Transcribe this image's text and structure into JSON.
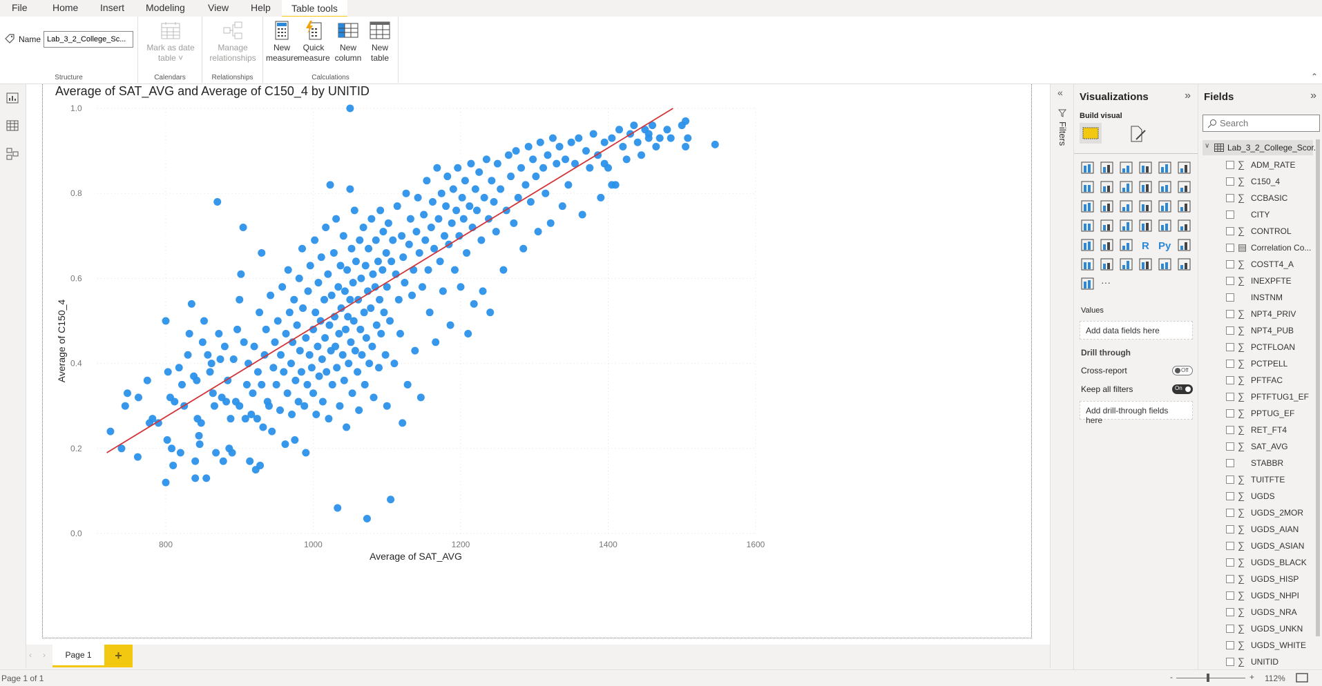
{
  "ribbon_tabs": [
    "File",
    "Home",
    "Insert",
    "Modeling",
    "View",
    "Help",
    "Table tools"
  ],
  "active_tab": "Table tools",
  "ribbon": {
    "name_label": "Name",
    "name_value": "Lab_3_2_College_Sc...",
    "structure_label": "Structure",
    "mark_date_l1": "Mark as date",
    "mark_date_l2": "table ˅",
    "calendars_label": "Calendars",
    "manage_l1": "Manage",
    "manage_l2": "relationships",
    "relationships_label": "Relationships",
    "new_measure_l1": "New",
    "new_measure_l2": "measure",
    "quick_measure_l1": "Quick",
    "quick_measure_l2": "measure",
    "new_column_l1": "New",
    "new_column_l2": "column",
    "new_table_l1": "New",
    "new_table_l2": "table",
    "calculations_label": "Calculations"
  },
  "filters_label": "Filters",
  "visualizations": {
    "title": "Visualizations",
    "build_visual": "Build visual",
    "icons": [
      "stacked-bar",
      "stacked-column",
      "clustered-bar",
      "clustered-column",
      "100-bar",
      "100-column",
      "line",
      "area",
      "stacked-area",
      "line-column",
      "line-clustered-column",
      "ribbon",
      "waterfall",
      "funnel",
      "scatter",
      "pie",
      "donut",
      "treemap",
      "map",
      "filled-map",
      "gauge",
      "card",
      "multi-row-card",
      "kpi",
      "slicer",
      "table",
      "matrix",
      "r-visual",
      "python-visual",
      "key-influencers",
      "decomposition-tree",
      "qa",
      "smart-narrative",
      "paginated-report",
      "power-apps",
      "power-automate",
      "get-more-visuals",
      "more"
    ],
    "values_label": "Values",
    "add_data": "Add data fields here",
    "drill_through": "Drill through",
    "cross_report": "Cross-report",
    "cross_report_state": "Off",
    "keep_filters": "Keep all filters",
    "keep_filters_state": "On",
    "add_drill": "Add drill-through fields here"
  },
  "fields": {
    "title": "Fields",
    "search_placeholder": "Search",
    "table_name": "Lab_3_2_College_Scor...",
    "items": [
      {
        "name": "ADM_RATE",
        "sigma": true
      },
      {
        "name": "C150_4",
        "sigma": true
      },
      {
        "name": "CCBASIC",
        "sigma": true
      },
      {
        "name": "CITY",
        "sigma": false
      },
      {
        "name": "CONTROL",
        "sigma": true
      },
      {
        "name": "Correlation Co...",
        "sigma": false,
        "calc": true
      },
      {
        "name": "COSTT4_A",
        "sigma": true
      },
      {
        "name": "INEXPFTE",
        "sigma": true
      },
      {
        "name": "INSTNM",
        "sigma": false
      },
      {
        "name": "NPT4_PRIV",
        "sigma": true
      },
      {
        "name": "NPT4_PUB",
        "sigma": true
      },
      {
        "name": "PCTFLOAN",
        "sigma": true
      },
      {
        "name": "PCTPELL",
        "sigma": true
      },
      {
        "name": "PFTFAC",
        "sigma": true
      },
      {
        "name": "PFTFTUG1_EF",
        "sigma": true
      },
      {
        "name": "PPTUG_EF",
        "sigma": true
      },
      {
        "name": "RET_FT4",
        "sigma": true
      },
      {
        "name": "SAT_AVG",
        "sigma": true
      },
      {
        "name": "STABBR",
        "sigma": false
      },
      {
        "name": "TUITFTE",
        "sigma": true
      },
      {
        "name": "UGDS",
        "sigma": true
      },
      {
        "name": "UGDS_2MOR",
        "sigma": true
      },
      {
        "name": "UGDS_AIAN",
        "sigma": true
      },
      {
        "name": "UGDS_ASIAN",
        "sigma": true
      },
      {
        "name": "UGDS_BLACK",
        "sigma": true
      },
      {
        "name": "UGDS_HISP",
        "sigma": true
      },
      {
        "name": "UGDS_NHPI",
        "sigma": true
      },
      {
        "name": "UGDS_NRA",
        "sigma": true
      },
      {
        "name": "UGDS_UNKN",
        "sigma": true
      },
      {
        "name": "UGDS_WHITE",
        "sigma": true
      },
      {
        "name": "UNITID",
        "sigma": true
      }
    ]
  },
  "pages": {
    "tab": "Page 1",
    "add": "+"
  },
  "status": {
    "page": "Page 1 of 1",
    "zoom": "112%",
    "zoom_minus": "-",
    "zoom_plus": "+",
    "zoom_level_percent": 112
  },
  "colors": {
    "accent": "#f2c811",
    "points": "#2b91ea",
    "trend": "#d13438"
  },
  "chart_data": {
    "type": "scatter",
    "title": "Average of SAT_AVG and Average of C150_4 by UNITID",
    "xlabel": "Average of SAT_AVG",
    "ylabel": "Average of C150_4",
    "xticks": [
      "800",
      "1000",
      "1200",
      "1400",
      "1600"
    ],
    "yticks": [
      "0.0",
      "0.2",
      "0.4",
      "0.6",
      "0.8",
      "1.0"
    ],
    "xlim": [
      707,
      1600
    ],
    "ylim": [
      0,
      1
    ],
    "grid": true,
    "trend_line": [
      [
        720,
        0.19
      ],
      [
        1488,
        1.0
      ]
    ],
    "points": [
      [
        725,
        0.24
      ],
      [
        740,
        0.2
      ],
      [
        745,
        0.3
      ],
      [
        748,
        0.33
      ],
      [
        762,
        0.18
      ],
      [
        763,
        0.32
      ],
      [
        775,
        0.36
      ],
      [
        778,
        0.26
      ],
      [
        782,
        0.27
      ],
      [
        790,
        0.26
      ],
      [
        800,
        0.12
      ],
      [
        800,
        0.5
      ],
      [
        802,
        0.22
      ],
      [
        803,
        0.38
      ],
      [
        806,
        0.32
      ],
      [
        808,
        0.2
      ],
      [
        810,
        0.16
      ],
      [
        812,
        0.31
      ],
      [
        818,
        0.39
      ],
      [
        820,
        0.19
      ],
      [
        822,
        0.35
      ],
      [
        825,
        0.3
      ],
      [
        830,
        0.42
      ],
      [
        832,
        0.47
      ],
      [
        835,
        0.54
      ],
      [
        838,
        0.37
      ],
      [
        840,
        0.17
      ],
      [
        840,
        0.13
      ],
      [
        842,
        0.36
      ],
      [
        843,
        0.27
      ],
      [
        845,
        0.23
      ],
      [
        846,
        0.21
      ],
      [
        848,
        0.26
      ],
      [
        850,
        0.45
      ],
      [
        852,
        0.5
      ],
      [
        855,
        0.13
      ],
      [
        857,
        0.42
      ],
      [
        860,
        0.38
      ],
      [
        862,
        0.4
      ],
      [
        864,
        0.33
      ],
      [
        866,
        0.3
      ],
      [
        868,
        0.19
      ],
      [
        870,
        0.78
      ],
      [
        872,
        0.47
      ],
      [
        874,
        0.41
      ],
      [
        876,
        0.32
      ],
      [
        878,
        0.17
      ],
      [
        880,
        0.44
      ],
      [
        882,
        0.31
      ],
      [
        884,
        0.36
      ],
      [
        886,
        0.2
      ],
      [
        888,
        0.27
      ],
      [
        890,
        0.19
      ],
      [
        892,
        0.41
      ],
      [
        895,
        0.31
      ],
      [
        897,
        0.48
      ],
      [
        900,
        0.3
      ],
      [
        900,
        0.55
      ],
      [
        902,
        0.61
      ],
      [
        905,
        0.72
      ],
      [
        906,
        0.45
      ],
      [
        908,
        0.27
      ],
      [
        910,
        0.35
      ],
      [
        912,
        0.4
      ],
      [
        914,
        0.17
      ],
      [
        916,
        0.28
      ],
      [
        918,
        0.33
      ],
      [
        920,
        0.44
      ],
      [
        922,
        0.15
      ],
      [
        924,
        0.27
      ],
      [
        925,
        0.38
      ],
      [
        927,
        0.52
      ],
      [
        928,
        0.16
      ],
      [
        930,
        0.66
      ],
      [
        930,
        0.35
      ],
      [
        932,
        0.25
      ],
      [
        934,
        0.42
      ],
      [
        936,
        0.48
      ],
      [
        938,
        0.31
      ],
      [
        940,
        0.3
      ],
      [
        942,
        0.56
      ],
      [
        944,
        0.24
      ],
      [
        946,
        0.39
      ],
      [
        948,
        0.45
      ],
      [
        950,
        0.35
      ],
      [
        952,
        0.5
      ],
      [
        955,
        0.29
      ],
      [
        956,
        0.42
      ],
      [
        958,
        0.58
      ],
      [
        960,
        0.38
      ],
      [
        962,
        0.21
      ],
      [
        963,
        0.47
      ],
      [
        965,
        0.33
      ],
      [
        966,
        0.62
      ],
      [
        968,
        0.52
      ],
      [
        970,
        0.4
      ],
      [
        971,
        0.28
      ],
      [
        972,
        0.45
      ],
      [
        974,
        0.55
      ],
      [
        975,
        0.22
      ],
      [
        976,
        0.36
      ],
      [
        978,
        0.49
      ],
      [
        980,
        0.31
      ],
      [
        981,
        0.6
      ],
      [
        982,
        0.43
      ],
      [
        984,
        0.38
      ],
      [
        985,
        0.67
      ],
      [
        986,
        0.53
      ],
      [
        988,
        0.3
      ],
      [
        990,
        0.46
      ],
      [
        990,
        0.19
      ],
      [
        992,
        0.35
      ],
      [
        993,
        0.57
      ],
      [
        995,
        0.42
      ],
      [
        996,
        0.63
      ],
      [
        998,
        0.39
      ],
      [
        1000,
        0.48
      ],
      [
        1000,
        0.33
      ],
      [
        1002,
        0.69
      ],
      [
        1003,
        0.52
      ],
      [
        1004,
        0.28
      ],
      [
        1006,
        0.44
      ],
      [
        1007,
        0.59
      ],
      [
        1008,
        0.37
      ],
      [
        1010,
        0.5
      ],
      [
        1011,
        0.65
      ],
      [
        1012,
        0.41
      ],
      [
        1013,
        0.31
      ],
      [
        1015,
        0.55
      ],
      [
        1016,
        0.46
      ],
      [
        1017,
        0.72
      ],
      [
        1018,
        0.38
      ],
      [
        1020,
        0.61
      ],
      [
        1021,
        0.27
      ],
      [
        1022,
        0.49
      ],
      [
        1023,
        0.82
      ],
      [
        1024,
        0.43
      ],
      [
        1025,
        0.56
      ],
      [
        1026,
        0.35
      ],
      [
        1028,
        0.66
      ],
      [
        1029,
        0.51
      ],
      [
        1030,
        0.44
      ],
      [
        1031,
        0.74
      ],
      [
        1032,
        0.39
      ],
      [
        1033,
        0.06
      ],
      [
        1034,
        0.58
      ],
      [
        1035,
        0.47
      ],
      [
        1036,
        0.3
      ],
      [
        1037,
        0.63
      ],
      [
        1038,
        0.53
      ],
      [
        1040,
        0.42
      ],
      [
        1041,
        0.7
      ],
      [
        1042,
        0.36
      ],
      [
        1043,
        0.57
      ],
      [
        1044,
        0.48
      ],
      [
        1045,
        0.25
      ],
      [
        1046,
        0.62
      ],
      [
        1047,
        0.51
      ],
      [
        1048,
        0.4
      ],
      [
        1050,
        1.0
      ],
      [
        1050,
        0.81
      ],
      [
        1050,
        0.55
      ],
      [
        1051,
        0.45
      ],
      [
        1052,
        0.67
      ],
      [
        1053,
        0.33
      ],
      [
        1054,
        0.59
      ],
      [
        1055,
        0.5
      ],
      [
        1056,
        0.76
      ],
      [
        1057,
        0.43
      ],
      [
        1058,
        0.64
      ],
      [
        1060,
        0.38
      ],
      [
        1061,
        0.55
      ],
      [
        1062,
        0.29
      ],
      [
        1063,
        0.69
      ],
      [
        1064,
        0.48
      ],
      [
        1065,
        0.6
      ],
      [
        1066,
        0.42
      ],
      [
        1068,
        0.72
      ],
      [
        1069,
        0.52
      ],
      [
        1070,
        0.35
      ],
      [
        1071,
        0.63
      ],
      [
        1072,
        0.46
      ],
      [
        1073,
        0.035
      ],
      [
        1074,
        0.57
      ],
      [
        1075,
        0.67
      ],
      [
        1076,
        0.4
      ],
      [
        1078,
        0.53
      ],
      [
        1079,
        0.74
      ],
      [
        1080,
        0.44
      ],
      [
        1081,
        0.61
      ],
      [
        1082,
        0.32
      ],
      [
        1084,
        0.58
      ],
      [
        1085,
        0.69
      ],
      [
        1086,
        0.49
      ],
      [
        1088,
        0.64
      ],
      [
        1089,
        0.39
      ],
      [
        1090,
        0.55
      ],
      [
        1091,
        0.76
      ],
      [
        1092,
        0.47
      ],
      [
        1094,
        0.62
      ],
      [
        1095,
        0.71
      ],
      [
        1096,
        0.52
      ],
      [
        1098,
        0.42
      ],
      [
        1099,
        0.66
      ],
      [
        1100,
        0.58
      ],
      [
        1100,
        0.3
      ],
      [
        1105,
        0.08
      ],
      [
        1102,
        0.73
      ],
      [
        1104,
        0.5
      ],
      [
        1106,
        0.64
      ],
      [
        1108,
        0.69
      ],
      [
        1110,
        0.4
      ],
      [
        1112,
        0.61
      ],
      [
        1114,
        0.77
      ],
      [
        1116,
        0.55
      ],
      [
        1118,
        0.47
      ],
      [
        1120,
        0.7
      ],
      [
        1121,
        0.26
      ],
      [
        1122,
        0.65
      ],
      [
        1124,
        0.59
      ],
      [
        1126,
        0.8
      ],
      [
        1128,
        0.35
      ],
      [
        1130,
        0.68
      ],
      [
        1132,
        0.74
      ],
      [
        1134,
        0.56
      ],
      [
        1136,
        0.62
      ],
      [
        1138,
        0.43
      ],
      [
        1140,
        0.71
      ],
      [
        1142,
        0.79
      ],
      [
        1144,
        0.66
      ],
      [
        1146,
        0.32
      ],
      [
        1148,
        0.58
      ],
      [
        1150,
        0.75
      ],
      [
        1152,
        0.69
      ],
      [
        1154,
        0.83
      ],
      [
        1156,
        0.62
      ],
      [
        1158,
        0.52
      ],
      [
        1160,
        0.72
      ],
      [
        1162,
        0.78
      ],
      [
        1164,
        0.67
      ],
      [
        1166,
        0.45
      ],
      [
        1168,
        0.86
      ],
      [
        1170,
        0.74
      ],
      [
        1172,
        0.64
      ],
      [
        1174,
        0.8
      ],
      [
        1176,
        0.57
      ],
      [
        1178,
        0.7
      ],
      [
        1180,
        0.77
      ],
      [
        1182,
        0.84
      ],
      [
        1184,
        0.68
      ],
      [
        1186,
        0.49
      ],
      [
        1188,
        0.73
      ],
      [
        1190,
        0.81
      ],
      [
        1192,
        0.62
      ],
      [
        1194,
        0.76
      ],
      [
        1196,
        0.86
      ],
      [
        1198,
        0.7
      ],
      [
        1200,
        0.58
      ],
      [
        1202,
        0.79
      ],
      [
        1204,
        0.74
      ],
      [
        1206,
        0.83
      ],
      [
        1208,
        0.66
      ],
      [
        1210,
        0.47
      ],
      [
        1212,
        0.77
      ],
      [
        1214,
        0.87
      ],
      [
        1216,
        0.72
      ],
      [
        1218,
        0.54
      ],
      [
        1220,
        0.81
      ],
      [
        1222,
        0.76
      ],
      [
        1225,
        0.85
      ],
      [
        1228,
        0.69
      ],
      [
        1230,
        0.57
      ],
      [
        1232,
        0.79
      ],
      [
        1235,
        0.88
      ],
      [
        1238,
        0.74
      ],
      [
        1240,
        0.52
      ],
      [
        1242,
        0.83
      ],
      [
        1245,
        0.78
      ],
      [
        1248,
        0.71
      ],
      [
        1250,
        0.87
      ],
      [
        1254,
        0.81
      ],
      [
        1258,
        0.62
      ],
      [
        1262,
        0.76
      ],
      [
        1265,
        0.89
      ],
      [
        1268,
        0.84
      ],
      [
        1272,
        0.73
      ],
      [
        1275,
        0.9
      ],
      [
        1278,
        0.79
      ],
      [
        1282,
        0.86
      ],
      [
        1285,
        0.67
      ],
      [
        1288,
        0.82
      ],
      [
        1292,
        0.91
      ],
      [
        1295,
        0.78
      ],
      [
        1298,
        0.88
      ],
      [
        1302,
        0.84
      ],
      [
        1305,
        0.71
      ],
      [
        1308,
        0.92
      ],
      [
        1312,
        0.86
      ],
      [
        1315,
        0.8
      ],
      [
        1318,
        0.89
      ],
      [
        1322,
        0.73
      ],
      [
        1325,
        0.93
      ],
      [
        1330,
        0.87
      ],
      [
        1334,
        0.91
      ],
      [
        1338,
        0.77
      ],
      [
        1342,
        0.88
      ],
      [
        1346,
        0.82
      ],
      [
        1350,
        0.92
      ],
      [
        1355,
        0.87
      ],
      [
        1360,
        0.93
      ],
      [
        1365,
        0.75
      ],
      [
        1370,
        0.9
      ],
      [
        1375,
        0.86
      ],
      [
        1380,
        0.94
      ],
      [
        1386,
        0.89
      ],
      [
        1390,
        0.79
      ],
      [
        1395,
        0.92
      ],
      [
        1400,
        0.86
      ],
      [
        1405,
        0.93
      ],
      [
        1410,
        0.82
      ],
      [
        1415,
        0.95
      ],
      [
        1420,
        0.91
      ],
      [
        1425,
        0.88
      ],
      [
        1430,
        0.94
      ],
      [
        1435,
        0.96
      ],
      [
        1440,
        0.92
      ],
      [
        1445,
        0.89
      ],
      [
        1450,
        0.95
      ],
      [
        1455,
        0.93
      ],
      [
        1460,
        0.96
      ],
      [
        1465,
        0.91
      ],
      [
        1470,
        0.93
      ],
      [
        1480,
        0.95
      ],
      [
        1485,
        0.93
      ],
      [
        1500,
        0.96
      ],
      [
        1505,
        0.97
      ],
      [
        1505,
        0.91
      ],
      [
        1508,
        0.93
      ],
      [
        1545,
        0.915
      ],
      [
        1395,
        0.87
      ],
      [
        1405,
        0.82
      ],
      [
        1455,
        0.94
      ]
    ]
  }
}
